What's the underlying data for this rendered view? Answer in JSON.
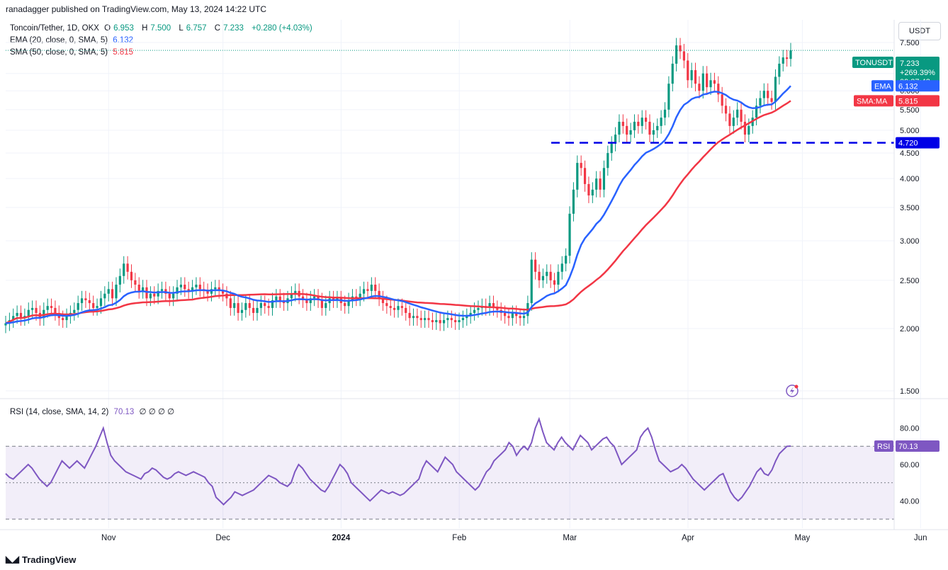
{
  "publisher": "ranadagger published on TradingView.com, May 13, 2024 14:22 UTC",
  "legend": {
    "symbol": "Toncoin/Tether, 1D, OKX",
    "o_label": "O",
    "o_value": "6.953",
    "h_label": "H",
    "h_value": "7.500",
    "l_label": "L",
    "l_value": "6.757",
    "c_label": "C",
    "c_value": "7.233",
    "change": "+0.280 (+4.03%)",
    "ema_label": "EMA (20, close, 0, SMA, 5)",
    "ema_value": "6.132",
    "sma_label": "SMA (50, close, 0, SMA, 5)",
    "sma_value": "5.815",
    "rsi_label": "RSI (14, close, SMA, 14, 2)",
    "rsi_value": "70.13",
    "rsi_extra": "∅ ∅ ∅ ∅"
  },
  "currency": "USDT",
  "branding": "TradingView",
  "price_badges": {
    "symbol": "TONUSDT",
    "price": "7.233",
    "change": "+269.39%",
    "countdown": "09:37:43",
    "ema_tag": "EMA",
    "ema_value": "6.132",
    "sma_tag": "SMA:MA",
    "sma_value": "5.815",
    "level_value": "4.720",
    "rsi_tag": "RSI",
    "rsi_value": "70.13"
  },
  "colors": {
    "up": "#089981",
    "down": "#f23645",
    "ema": "#2962ff",
    "sma": "#f23645",
    "rsi": "#7e57c2",
    "level": "#0000e6",
    "grid": "#f0f3fa"
  },
  "icon": "lightning-bolt-icon",
  "chart_data": [
    {
      "type": "candlestick",
      "y_axis_ticks": [
        "7.500",
        "6.500",
        "6.000",
        "5.500",
        "5.000",
        "4.500",
        "4.000",
        "3.500",
        "3.000",
        "2.500",
        "2.000",
        "1.500"
      ],
      "x_axis_ticks": [
        {
          "label": "Nov",
          "date": "2023-11-01"
        },
        {
          "label": "Dec",
          "date": "2023-12-01"
        },
        {
          "label": "2024",
          "date": "2024-01-01"
        },
        {
          "label": "Feb",
          "date": "2024-02-01"
        },
        {
          "label": "Mar",
          "date": "2024-03-01"
        },
        {
          "label": "Apr",
          "date": "2024-04-01"
        },
        {
          "label": "May",
          "date": "2024-05-01"
        },
        {
          "label": "Jun",
          "date": "2024-06-01"
        }
      ],
      "y_scale": "log",
      "start_date": "2023-10-05",
      "horizontal_level": 4.72,
      "close_series": [
        2.05,
        2.08,
        2.12,
        2.15,
        2.1,
        2.12,
        2.18,
        2.2,
        2.15,
        2.1,
        2.18,
        2.22,
        2.2,
        2.15,
        2.1,
        2.08,
        2.12,
        2.15,
        2.18,
        2.25,
        2.3,
        2.28,
        2.25,
        2.2,
        2.22,
        2.3,
        2.35,
        2.4,
        2.3,
        2.45,
        2.55,
        2.7,
        2.6,
        2.5,
        2.45,
        2.38,
        2.42,
        2.3,
        2.35,
        2.32,
        2.38,
        2.4,
        2.35,
        2.3,
        2.35,
        2.42,
        2.45,
        2.4,
        2.38,
        2.42,
        2.45,
        2.4,
        2.38,
        2.35,
        2.4,
        2.42,
        2.38,
        2.35,
        2.3,
        2.2,
        2.25,
        2.15,
        2.18,
        2.25,
        2.2,
        2.15,
        2.2,
        2.25,
        2.22,
        2.2,
        2.28,
        2.32,
        2.28,
        2.25,
        2.3,
        2.35,
        2.38,
        2.32,
        2.28,
        2.25,
        2.3,
        2.32,
        2.28,
        2.2,
        2.25,
        2.3,
        2.28,
        2.3,
        2.25,
        2.22,
        2.28,
        2.32,
        2.3,
        2.35,
        2.4,
        2.38,
        2.45,
        2.38,
        2.3,
        2.25,
        2.22,
        2.2,
        2.18,
        2.22,
        2.2,
        2.15,
        2.1,
        2.12,
        2.1,
        2.08,
        2.1,
        2.08,
        2.06,
        2.08,
        2.05,
        2.08,
        2.1,
        2.08,
        2.06,
        2.08,
        2.1,
        2.12,
        2.15,
        2.18,
        2.2,
        2.22,
        2.2,
        2.25,
        2.2,
        2.18,
        2.15,
        2.12,
        2.1,
        2.15,
        2.12,
        2.1,
        2.12,
        2.25,
        2.75,
        2.6,
        2.5,
        2.55,
        2.6,
        2.5,
        2.45,
        2.6,
        2.7,
        2.8,
        3.4,
        3.8,
        4.3,
        4.2,
        3.9,
        3.7,
        3.8,
        4.0,
        3.8,
        4.2,
        4.5,
        4.7,
        4.9,
        5.2,
        5.1,
        4.9,
        5.0,
        5.2,
        5.1,
        5.3,
        5.2,
        4.9,
        5.0,
        5.1,
        5.3,
        5.5,
        6.2,
        6.8,
        7.4,
        7.2,
        6.9,
        6.3,
        6.6,
        6.2,
        6.0,
        6.5,
        6.1,
        6.3,
        6.2,
        5.9,
        5.6,
        5.4,
        5.1,
        5.3,
        5.5,
        5.2,
        4.9,
        5.1,
        5.3,
        5.6,
        5.8,
        6.0,
        5.8,
        5.7,
        6.4,
        6.8,
        7.0,
        6.953,
        7.233
      ]
    },
    {
      "type": "line",
      "name": "RSI",
      "y_axis_ticks": [
        "80.00",
        "60.00",
        "40.00"
      ],
      "bands": [
        30,
        50,
        70
      ],
      "values": [
        55,
        53,
        52,
        54,
        56,
        58,
        60,
        58,
        55,
        52,
        50,
        48,
        50,
        54,
        58,
        62,
        60,
        58,
        60,
        62,
        60,
        58,
        62,
        66,
        70,
        75,
        80,
        72,
        65,
        62,
        60,
        58,
        56,
        55,
        54,
        53,
        52,
        55,
        56,
        58,
        57,
        55,
        53,
        52,
        53,
        55,
        56,
        55,
        54,
        55,
        56,
        55,
        54,
        53,
        50,
        48,
        42,
        40,
        38,
        40,
        42,
        45,
        44,
        43,
        44,
        45,
        46,
        48,
        50,
        52,
        54,
        53,
        52,
        50,
        49,
        48,
        50,
        56,
        60,
        58,
        55,
        52,
        50,
        48,
        46,
        45,
        48,
        52,
        56,
        60,
        58,
        55,
        50,
        48,
        46,
        44,
        42,
        40,
        42,
        44,
        46,
        45,
        44,
        45,
        44,
        43,
        44,
        46,
        48,
        50,
        52,
        58,
        62,
        60,
        58,
        56,
        60,
        64,
        62,
        60,
        56,
        54,
        52,
        50,
        48,
        46,
        48,
        52,
        56,
        58,
        62,
        64,
        66,
        68,
        72,
        70,
        65,
        68,
        70,
        68,
        72,
        80,
        85,
        78,
        72,
        70,
        68,
        72,
        75,
        72,
        70,
        68,
        72,
        76,
        74,
        72,
        68,
        70,
        72,
        74,
        75,
        72,
        70,
        65,
        60,
        62,
        64,
        66,
        68,
        75,
        78,
        80,
        75,
        68,
        62,
        60,
        58,
        56,
        57,
        58,
        60,
        58,
        55,
        52,
        50,
        48,
        46,
        48,
        50,
        52,
        54,
        55,
        50,
        45,
        42,
        40,
        42,
        45,
        48,
        52,
        56,
        58,
        55,
        54,
        57,
        62,
        66,
        68,
        70,
        70.13
      ]
    }
  ]
}
